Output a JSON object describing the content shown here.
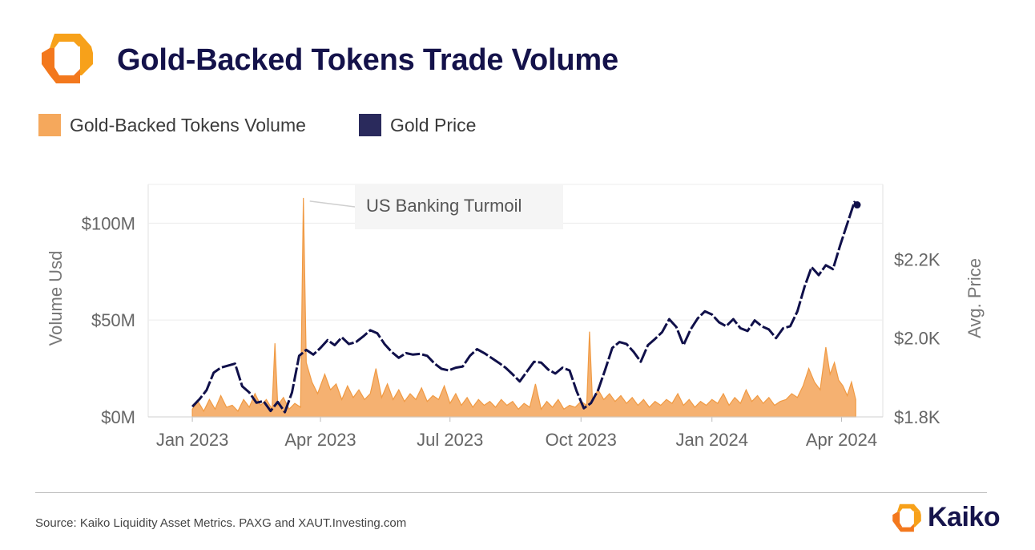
{
  "title": "Gold-Backed Tokens Trade Volume",
  "legend": [
    {
      "label": "Gold-Backed Tokens Volume",
      "color": "#f5a85c"
    },
    {
      "label": "Gold Price",
      "color": "#2a2a5c"
    }
  ],
  "annotation": "US Banking Turmoil",
  "source": "Source: Kaiko Liquidity Asset Metrics. PAXG and XAUT.Investing.com",
  "brand": "Kaiko",
  "colors": {
    "accent_orange": "#f08a1c",
    "navy": "#16144c",
    "volume_fill": "#f5b171",
    "volume_line": "#f09a43",
    "price_line": "#10104a"
  },
  "chart_data": {
    "type": "area",
    "x_ticks": [
      "Jan 2023",
      "Apr 2023",
      "Jul 2023",
      "Oct 2023",
      "Jan 2024",
      "Apr 2024"
    ],
    "x_range": [
      "2022-12-01",
      "2024-04-30"
    ],
    "ylabel_left": "Volume Usd",
    "ylabel_right": "Avg. Price",
    "y_left_ticks": [
      "$0M",
      "$50M",
      "$100M"
    ],
    "y_left_range": [
      0,
      120
    ],
    "y_right_ticks": [
      "$1.8K",
      "$2.0K",
      "$2.2K"
    ],
    "y_right_range": [
      1800,
      2390
    ],
    "grid": true,
    "series": [
      {
        "name": "Gold-Backed Tokens Volume",
        "axis": "left",
        "unit": "M USD",
        "points": [
          [
            "2023-01-01",
            4
          ],
          [
            "2023-01-05",
            8
          ],
          [
            "2023-01-09",
            3
          ],
          [
            "2023-01-13",
            9
          ],
          [
            "2023-01-17",
            4
          ],
          [
            "2023-01-21",
            11
          ],
          [
            "2023-01-25",
            5
          ],
          [
            "2023-01-29",
            6
          ],
          [
            "2023-02-02",
            3
          ],
          [
            "2023-02-06",
            9
          ],
          [
            "2023-02-10",
            5
          ],
          [
            "2023-02-14",
            12
          ],
          [
            "2023-02-18",
            6
          ],
          [
            "2023-02-22",
            9
          ],
          [
            "2023-02-26",
            4
          ],
          [
            "2023-02-28",
            38
          ],
          [
            "2023-03-02",
            6
          ],
          [
            "2023-03-06",
            10
          ],
          [
            "2023-03-10",
            4
          ],
          [
            "2023-03-14",
            7
          ],
          [
            "2023-03-18",
            5
          ],
          [
            "2023-03-20",
            113
          ],
          [
            "2023-03-22",
            28
          ],
          [
            "2023-03-26",
            18
          ],
          [
            "2023-03-30",
            12
          ],
          [
            "2023-04-04",
            22
          ],
          [
            "2023-04-08",
            14
          ],
          [
            "2023-04-12",
            17
          ],
          [
            "2023-04-16",
            9
          ],
          [
            "2023-04-20",
            16
          ],
          [
            "2023-04-24",
            10
          ],
          [
            "2023-04-28",
            14
          ],
          [
            "2023-05-02",
            9
          ],
          [
            "2023-05-06",
            12
          ],
          [
            "2023-05-10",
            25
          ],
          [
            "2023-05-14",
            10
          ],
          [
            "2023-05-18",
            17
          ],
          [
            "2023-05-22",
            9
          ],
          [
            "2023-05-26",
            14
          ],
          [
            "2023-05-30",
            8
          ],
          [
            "2023-06-03",
            12
          ],
          [
            "2023-06-07",
            9
          ],
          [
            "2023-06-11",
            15
          ],
          [
            "2023-06-15",
            8
          ],
          [
            "2023-06-19",
            11
          ],
          [
            "2023-06-23",
            9
          ],
          [
            "2023-06-27",
            16
          ],
          [
            "2023-07-01",
            7
          ],
          [
            "2023-07-05",
            12
          ],
          [
            "2023-07-09",
            6
          ],
          [
            "2023-07-13",
            10
          ],
          [
            "2023-07-17",
            5
          ],
          [
            "2023-07-21",
            9
          ],
          [
            "2023-07-25",
            6
          ],
          [
            "2023-07-29",
            8
          ],
          [
            "2023-08-02",
            5
          ],
          [
            "2023-08-06",
            9
          ],
          [
            "2023-08-10",
            6
          ],
          [
            "2023-08-14",
            8
          ],
          [
            "2023-08-18",
            4
          ],
          [
            "2023-08-22",
            7
          ],
          [
            "2023-08-26",
            5
          ],
          [
            "2023-08-30",
            17
          ],
          [
            "2023-09-03",
            4
          ],
          [
            "2023-09-07",
            8
          ],
          [
            "2023-09-11",
            5
          ],
          [
            "2023-09-15",
            9
          ],
          [
            "2023-09-19",
            4
          ],
          [
            "2023-09-23",
            6
          ],
          [
            "2023-09-27",
            5
          ],
          [
            "2023-10-01",
            8
          ],
          [
            "2023-10-05",
            6
          ],
          [
            "2023-10-07",
            44
          ],
          [
            "2023-10-09",
            9
          ],
          [
            "2023-10-13",
            14
          ],
          [
            "2023-10-17",
            9
          ],
          [
            "2023-10-21",
            12
          ],
          [
            "2023-10-25",
            8
          ],
          [
            "2023-10-29",
            11
          ],
          [
            "2023-11-02",
            7
          ],
          [
            "2023-11-06",
            10
          ],
          [
            "2023-11-10",
            6
          ],
          [
            "2023-11-14",
            9
          ],
          [
            "2023-11-18",
            5
          ],
          [
            "2023-11-22",
            8
          ],
          [
            "2023-11-26",
            6
          ],
          [
            "2023-11-30",
            9
          ],
          [
            "2023-12-04",
            7
          ],
          [
            "2023-12-08",
            12
          ],
          [
            "2023-12-12",
            6
          ],
          [
            "2023-12-16",
            9
          ],
          [
            "2023-12-20",
            5
          ],
          [
            "2023-12-24",
            8
          ],
          [
            "2023-12-28",
            6
          ],
          [
            "2024-01-01",
            9
          ],
          [
            "2024-01-05",
            7
          ],
          [
            "2024-01-09",
            12
          ],
          [
            "2024-01-13",
            6
          ],
          [
            "2024-01-17",
            10
          ],
          [
            "2024-01-21",
            7
          ],
          [
            "2024-01-25",
            14
          ],
          [
            "2024-01-29",
            8
          ],
          [
            "2024-02-02",
            11
          ],
          [
            "2024-02-06",
            7
          ],
          [
            "2024-02-10",
            10
          ],
          [
            "2024-02-14",
            6
          ],
          [
            "2024-02-18",
            8
          ],
          [
            "2024-02-22",
            9
          ],
          [
            "2024-02-26",
            12
          ],
          [
            "2024-03-01",
            10
          ],
          [
            "2024-03-05",
            16
          ],
          [
            "2024-03-09",
            25
          ],
          [
            "2024-03-13",
            18
          ],
          [
            "2024-03-17",
            14
          ],
          [
            "2024-03-21",
            36
          ],
          [
            "2024-03-24",
            22
          ],
          [
            "2024-03-27",
            28
          ],
          [
            "2024-03-30",
            19
          ],
          [
            "2024-04-02",
            16
          ],
          [
            "2024-04-05",
            11
          ],
          [
            "2024-04-08",
            18
          ],
          [
            "2024-04-11",
            9
          ]
        ]
      },
      {
        "name": "Gold Price",
        "axis": "right",
        "unit": "USD",
        "points": [
          [
            "2023-01-01",
            1826
          ],
          [
            "2023-01-06",
            1845
          ],
          [
            "2023-01-11",
            1868
          ],
          [
            "2023-01-16",
            1912
          ],
          [
            "2023-01-21",
            1925
          ],
          [
            "2023-01-26",
            1930
          ],
          [
            "2023-01-31",
            1935
          ],
          [
            "2023-02-05",
            1878
          ],
          [
            "2023-02-10",
            1862
          ],
          [
            "2023-02-15",
            1836
          ],
          [
            "2023-02-20",
            1840
          ],
          [
            "2023-02-25",
            1815
          ],
          [
            "2023-03-02",
            1838
          ],
          [
            "2023-03-07",
            1812
          ],
          [
            "2023-03-12",
            1862
          ],
          [
            "2023-03-17",
            1955
          ],
          [
            "2023-03-22",
            1970
          ],
          [
            "2023-03-27",
            1958
          ],
          [
            "2023-04-01",
            1975
          ],
          [
            "2023-04-06",
            1995
          ],
          [
            "2023-04-11",
            1982
          ],
          [
            "2023-04-16",
            2002
          ],
          [
            "2023-04-21",
            1985
          ],
          [
            "2023-04-26",
            1990
          ],
          [
            "2023-05-01",
            2004
          ],
          [
            "2023-05-06",
            2020
          ],
          [
            "2023-05-11",
            2012
          ],
          [
            "2023-05-16",
            1985
          ],
          [
            "2023-05-21",
            1965
          ],
          [
            "2023-05-26",
            1950
          ],
          [
            "2023-05-31",
            1962
          ],
          [
            "2023-06-05",
            1958
          ],
          [
            "2023-06-10",
            1960
          ],
          [
            "2023-06-15",
            1955
          ],
          [
            "2023-06-20",
            1936
          ],
          [
            "2023-06-25",
            1922
          ],
          [
            "2023-06-30",
            1918
          ],
          [
            "2023-07-05",
            1925
          ],
          [
            "2023-07-10",
            1928
          ],
          [
            "2023-07-15",
            1955
          ],
          [
            "2023-07-20",
            1972
          ],
          [
            "2023-07-25",
            1962
          ],
          [
            "2023-07-30",
            1950
          ],
          [
            "2023-08-04",
            1938
          ],
          [
            "2023-08-09",
            1925
          ],
          [
            "2023-08-14",
            1908
          ],
          [
            "2023-08-19",
            1890
          ],
          [
            "2023-08-24",
            1915
          ],
          [
            "2023-08-29",
            1940
          ],
          [
            "2023-09-03",
            1938
          ],
          [
            "2023-09-08",
            1920
          ],
          [
            "2023-09-13",
            1910
          ],
          [
            "2023-09-18",
            1925
          ],
          [
            "2023-09-23",
            1918
          ],
          [
            "2023-09-28",
            1865
          ],
          [
            "2023-10-03",
            1822
          ],
          [
            "2023-10-08",
            1835
          ],
          [
            "2023-10-13",
            1868
          ],
          [
            "2023-10-18",
            1920
          ],
          [
            "2023-10-23",
            1975
          ],
          [
            "2023-10-28",
            1990
          ],
          [
            "2023-11-02",
            1985
          ],
          [
            "2023-11-07",
            1965
          ],
          [
            "2023-11-12",
            1940
          ],
          [
            "2023-11-17",
            1982
          ],
          [
            "2023-11-22",
            1998
          ],
          [
            "2023-11-27",
            2015
          ],
          [
            "2023-12-02",
            2048
          ],
          [
            "2023-12-07",
            2028
          ],
          [
            "2023-12-12",
            1982
          ],
          [
            "2023-12-17",
            2022
          ],
          [
            "2023-12-22",
            2050
          ],
          [
            "2023-12-27",
            2068
          ],
          [
            "2024-01-01",
            2060
          ],
          [
            "2024-01-06",
            2040
          ],
          [
            "2024-01-11",
            2030
          ],
          [
            "2024-01-16",
            2048
          ],
          [
            "2024-01-21",
            2025
          ],
          [
            "2024-01-26",
            2018
          ],
          [
            "2024-01-31",
            2045
          ],
          [
            "2024-02-05",
            2030
          ],
          [
            "2024-02-10",
            2022
          ],
          [
            "2024-02-15",
            2000
          ],
          [
            "2024-02-20",
            2025
          ],
          [
            "2024-02-25",
            2030
          ],
          [
            "2024-03-01",
            2068
          ],
          [
            "2024-03-06",
            2130
          ],
          [
            "2024-03-11",
            2180
          ],
          [
            "2024-03-16",
            2160
          ],
          [
            "2024-03-21",
            2185
          ],
          [
            "2024-03-26",
            2175
          ],
          [
            "2024-03-31",
            2235
          ],
          [
            "2024-04-05",
            2290
          ],
          [
            "2024-04-10",
            2345
          ],
          [
            "2024-04-12",
            2338
          ]
        ]
      }
    ]
  }
}
